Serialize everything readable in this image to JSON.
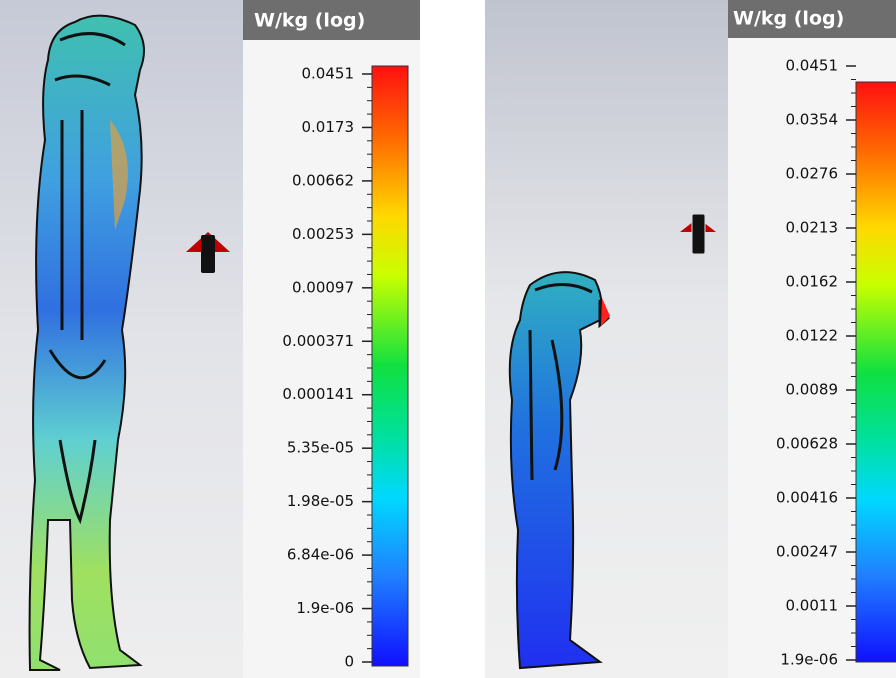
{
  "panels": [
    {
      "title": "W/kg (log)",
      "ticks": [
        "0.0451",
        "0.0173",
        "0.00662",
        "0.00253",
        "0.00097",
        "0.000371",
        "0.000141",
        "5.35e-05",
        "1.98e-05",
        "6.84e-06",
        "1.9e-06",
        "0"
      ]
    },
    {
      "title": "W/kg (log)",
      "ticks": [
        "0.0451",
        "0.0354",
        "0.0276",
        "0.0213",
        "0.0162",
        "0.0122",
        "0.0089",
        "0.00628",
        "0.00416",
        "0.00247",
        "0.0011",
        "1.9e-06"
      ]
    }
  ]
}
